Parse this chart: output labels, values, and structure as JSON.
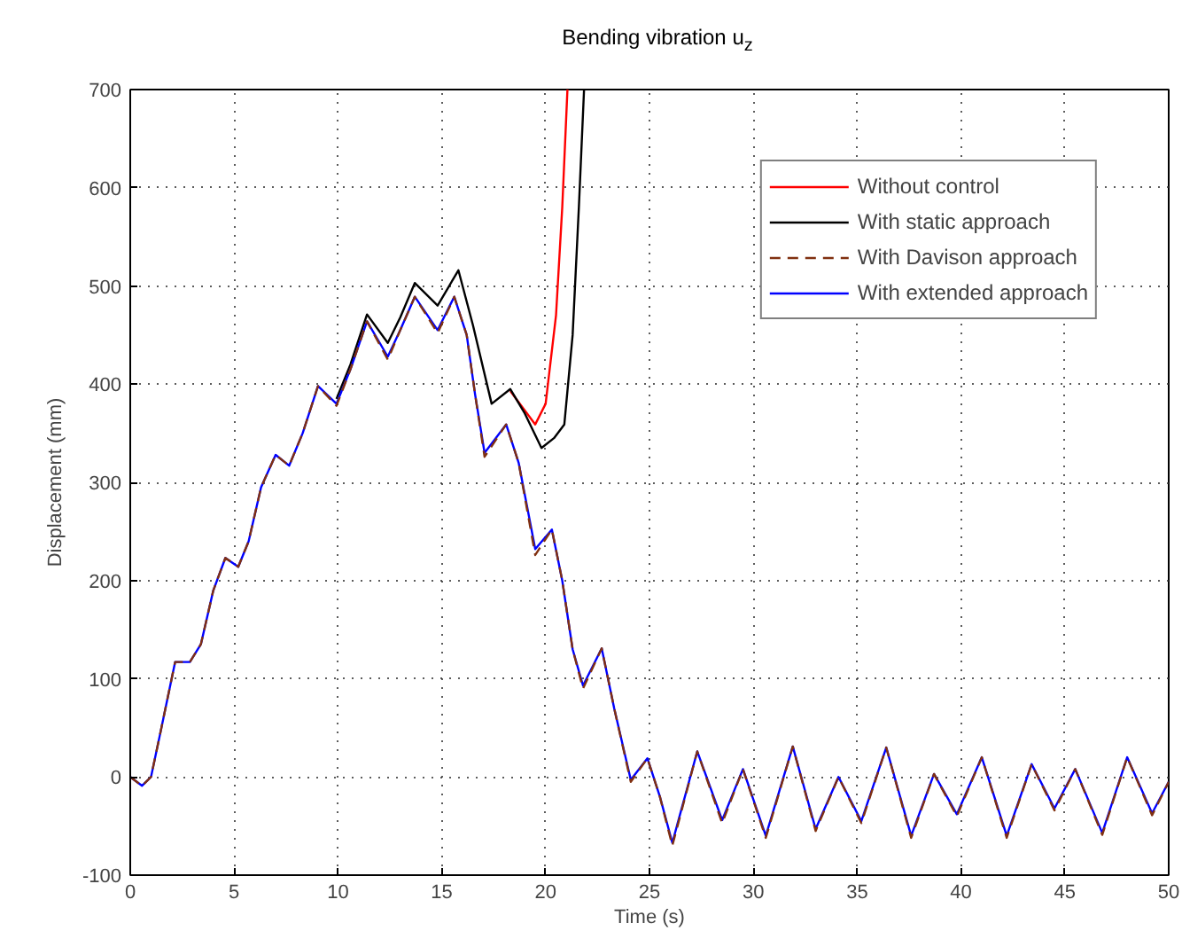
{
  "chart_data": {
    "type": "line",
    "title": "Bending vibration u$_{z}$",
    "xlabel": "Time (s)",
    "ylabel": "Displacement (mm)",
    "xlim": [
      0,
      50
    ],
    "ylim": [
      -100,
      700
    ],
    "xticks": [
      0,
      5,
      10,
      15,
      20,
      25,
      30,
      35,
      40,
      45,
      50
    ],
    "yticks": [
      -100,
      0,
      100,
      200,
      300,
      400,
      500,
      600,
      700
    ],
    "grid": true,
    "legend": "top right",
    "series": [
      {
        "name": "Without control",
        "color": "#ff0000",
        "line_style": "solid",
        "x": [
          18.3,
          19.5,
          20.0,
          20.5,
          20.8,
          21.05
        ],
        "values": [
          393,
          359,
          380,
          470,
          580,
          700
        ]
      },
      {
        "name": "With static approach",
        "color": "#000000",
        "line_style": "solid",
        "x": [
          9.93,
          10.6,
          11.4,
          12.4,
          13.0,
          13.7,
          14.8,
          15.8,
          16.5,
          17.4,
          18.3,
          19.0,
          19.8,
          20.4,
          20.9,
          21.3,
          21.6,
          21.85
        ],
        "values": [
          385,
          420,
          471,
          442,
          468,
          503,
          480,
          516,
          460,
          380,
          395,
          370,
          335,
          345,
          359,
          450,
          580,
          700
        ]
      },
      {
        "name": "With Davison approach",
        "color": "#803010",
        "line_style": "dashed",
        "x": [
          0,
          0.57,
          1.0,
          1.5,
          2.16,
          2.87,
          3.4,
          4.0,
          4.58,
          5.2,
          5.7,
          6.3,
          7.0,
          7.65,
          8.3,
          9.04,
          9.93,
          10.6,
          11.4,
          12.4,
          13.0,
          13.7,
          14.8,
          15.6,
          16.2,
          16.6,
          17.06,
          18.1,
          18.7,
          19.5,
          20.3,
          20.8,
          21.3,
          21.8,
          22.7,
          23.3,
          24.1,
          24.9,
          25.5,
          26.1,
          27.3,
          28.5,
          29.5,
          30.6,
          31.9,
          33.0,
          34.1,
          35.2,
          36.4,
          37.6,
          38.7,
          39.8,
          41.0,
          42.2,
          43.4,
          44.5,
          45.5,
          46.8,
          48.0,
          49.2,
          50
        ],
        "values": [
          0,
          -9,
          0,
          50,
          117,
          117,
          135,
          190,
          223,
          214,
          240,
          295,
          328,
          317,
          350,
          398,
          378,
          415,
          464,
          425,
          455,
          489,
          452,
          489,
          450,
          390,
          326,
          359,
          320,
          226,
          252,
          200,
          130,
          90,
          131,
          70,
          -5,
          19,
          -20,
          -70,
          26,
          -47,
          8,
          -62,
          31,
          -55,
          0,
          -47,
          30,
          -62,
          3,
          -40,
          20,
          -62,
          13,
          -34,
          8,
          -59,
          20,
          -39,
          -5
        ]
      },
      {
        "name": "With extended approach",
        "color": "#0000ff",
        "line_style": "solid",
        "x": [
          0,
          0.57,
          1.0,
          1.5,
          2.16,
          2.87,
          3.4,
          4.0,
          4.58,
          5.2,
          5.7,
          6.3,
          7.0,
          7.65,
          8.3,
          9.04,
          9.93,
          10.6,
          11.4,
          12.4,
          13.0,
          13.7,
          14.8,
          15.6,
          16.2,
          16.6,
          17.06,
          18.1,
          18.7,
          19.5,
          20.3,
          20.8,
          21.3,
          21.8,
          22.7,
          23.3,
          24.1,
          24.9,
          25.5,
          26.1,
          27.3,
          28.5,
          29.5,
          30.6,
          31.9,
          33.0,
          34.1,
          35.2,
          36.4,
          37.6,
          38.7,
          39.8,
          41.0,
          42.2,
          43.4,
          44.5,
          45.5,
          46.8,
          48.0,
          49.2,
          50
        ],
        "values": [
          0,
          -9,
          0,
          50,
          117,
          117,
          135,
          190,
          223,
          214,
          240,
          295,
          328,
          317,
          350,
          398,
          380,
          415,
          464,
          428,
          455,
          489,
          455,
          489,
          450,
          390,
          330,
          359,
          320,
          232,
          252,
          200,
          130,
          93,
          131,
          70,
          -3,
          19,
          -20,
          -67,
          26,
          -44,
          8,
          -60,
          31,
          -53,
          0,
          -45,
          30,
          -60,
          3,
          -38,
          20,
          -60,
          13,
          -32,
          8,
          -57,
          20,
          -37,
          -5
        ]
      }
    ]
  }
}
